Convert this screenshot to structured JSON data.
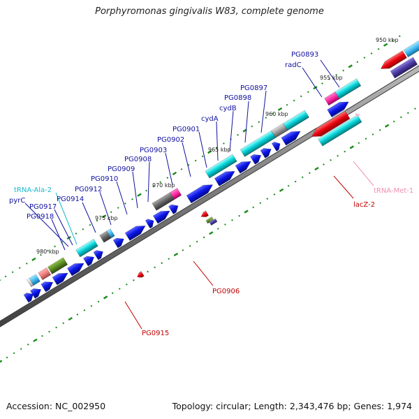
{
  "title": "Porphyromonas gingivalis W83, complete genome",
  "footer": {
    "accession": "Accession: NC_002950",
    "stats": "Topology: circular; Length: 2,343,476 bp; Genes: 1,974"
  },
  "colors": {
    "cds": "#0a14e6",
    "trna": "#00d2d8",
    "rrna": "#e8000c",
    "pseudo": "#ff2aa0",
    "backbone": "#808080",
    "ruler": "#178a17",
    "label_blue": "#1010a0",
    "label_cyan": "#19b9d0",
    "label_red": "#c00000",
    "label_pink": "#f090b0"
  },
  "ticks": [
    "950 kbp",
    "955 kbp",
    "960 kbp",
    "965 kbp",
    "970 kbp",
    "975 kbp",
    "980 kbp"
  ],
  "labels_top": [
    "PG0893",
    "radC",
    "PG0897",
    "PG0898",
    "cydB",
    "cydA",
    "PG0901",
    "PG0902",
    "PG0903",
    "PG0908",
    "PG0909",
    "PG0910",
    "PG0912",
    "PG0914",
    "tRNA-Ala-2",
    "pyrC",
    "PG0917",
    "PG0918"
  ],
  "labels_bottom": [
    "lacZ-2",
    "tRNA-Met-1",
    "PG0906",
    "PG0915"
  ]
}
